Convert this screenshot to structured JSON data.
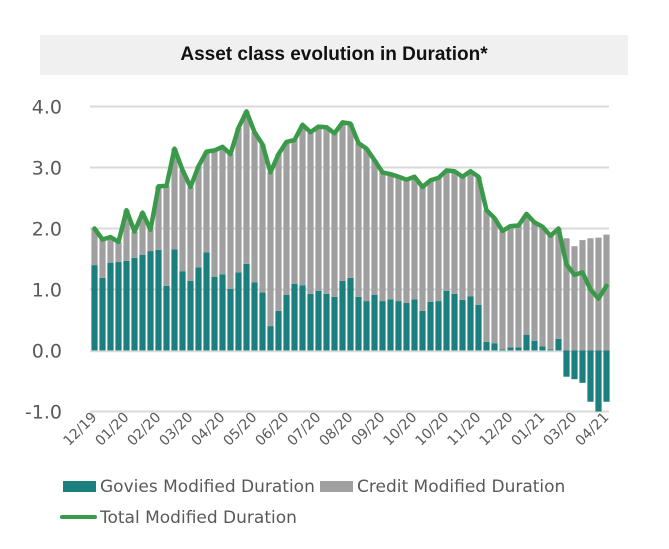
{
  "chart_data": {
    "type": "bar",
    "stacked": true,
    "title": "Asset class evolution in Duration*",
    "xlabel": "",
    "ylabel": "",
    "ylim": [
      -1.0,
      4.0
    ],
    "yticks": [
      "4.0",
      "3.0",
      "2.0",
      "1.0",
      "0.0",
      "-1.0"
    ],
    "ytick_values": [
      4,
      3,
      2,
      1,
      0,
      -1
    ],
    "grid": true,
    "legend_position": "bottom",
    "x_tick_labels": [
      "12/19",
      "01/20",
      "02/20",
      "03/20",
      "04/20",
      "05/20",
      "06/20",
      "07/20",
      "08/20",
      "09/20",
      "10/20",
      "10/20",
      "11/20",
      "12/20",
      "01/21",
      "03/20",
      "04/21"
    ],
    "x_tick_every": 4,
    "series": [
      {
        "name": "Govies Modified Duration",
        "kind": "bar",
        "color": "#1b7f7d",
        "values": [
          1.4,
          1.19,
          1.44,
          1.45,
          1.47,
          1.52,
          1.57,
          1.63,
          1.65,
          1.06,
          1.66,
          1.3,
          1.14,
          1.36,
          1.61,
          1.21,
          1.25,
          1.01,
          1.28,
          1.42,
          1.12,
          0.95,
          0.4,
          0.65,
          0.91,
          1.09,
          1.07,
          0.93,
          0.98,
          0.93,
          0.88,
          1.14,
          1.19,
          0.88,
          0.81,
          0.91,
          0.81,
          0.84,
          0.81,
          0.78,
          0.84,
          0.65,
          0.8,
          0.81,
          0.98,
          0.93,
          0.83,
          0.89,
          0.75,
          0.14,
          0.12,
          0.02,
          0.05,
          0.05,
          0.26,
          0.16,
          0.07,
          0.02,
          0.19,
          -0.43,
          -0.47,
          -0.53,
          -0.84,
          -1.0,
          -0.84
        ]
      },
      {
        "name": "Credit Modified Duration",
        "kind": "bar",
        "color": "#a0a0a0",
        "values": [
          0.6,
          0.63,
          0.42,
          0.33,
          0.83,
          0.43,
          0.69,
          0.35,
          1.04,
          1.64,
          1.65,
          1.66,
          1.54,
          1.66,
          1.65,
          2.07,
          2.09,
          2.21,
          2.37,
          2.5,
          2.46,
          2.43,
          2.52,
          2.57,
          2.51,
          2.36,
          2.63,
          2.65,
          2.69,
          2.73,
          2.68,
          2.6,
          2.53,
          2.52,
          2.5,
          2.21,
          2.11,
          2.05,
          2.04,
          2.02,
          2.01,
          2.03,
          1.99,
          2.02,
          1.97,
          2.01,
          2.02,
          2.05,
          2.1,
          2.16,
          2.05,
          1.94,
          1.99,
          2.0,
          1.98,
          1.94,
          1.96,
          1.86,
          1.81,
          1.84,
          1.71,
          1.81,
          1.84,
          1.85,
          1.9
        ]
      },
      {
        "name": "Total Modified Duration",
        "kind": "line",
        "color": "#3a9a4a",
        "values": [
          2.0,
          1.82,
          1.86,
          1.78,
          2.3,
          1.95,
          2.26,
          1.98,
          2.69,
          2.7,
          3.31,
          2.96,
          2.68,
          3.02,
          3.26,
          3.28,
          3.34,
          3.22,
          3.65,
          3.92,
          3.58,
          3.38,
          2.92,
          3.22,
          3.42,
          3.45,
          3.7,
          3.58,
          3.67,
          3.66,
          3.56,
          3.74,
          3.72,
          3.4,
          3.31,
          3.12,
          2.92,
          2.89,
          2.85,
          2.8,
          2.85,
          2.68,
          2.79,
          2.83,
          2.95,
          2.94,
          2.85,
          2.94,
          2.85,
          2.3,
          2.17,
          1.96,
          2.04,
          2.05,
          2.24,
          2.1,
          2.03,
          1.88,
          2.0,
          1.41,
          1.24,
          1.28,
          1.0,
          0.85,
          1.06
        ]
      }
    ]
  }
}
